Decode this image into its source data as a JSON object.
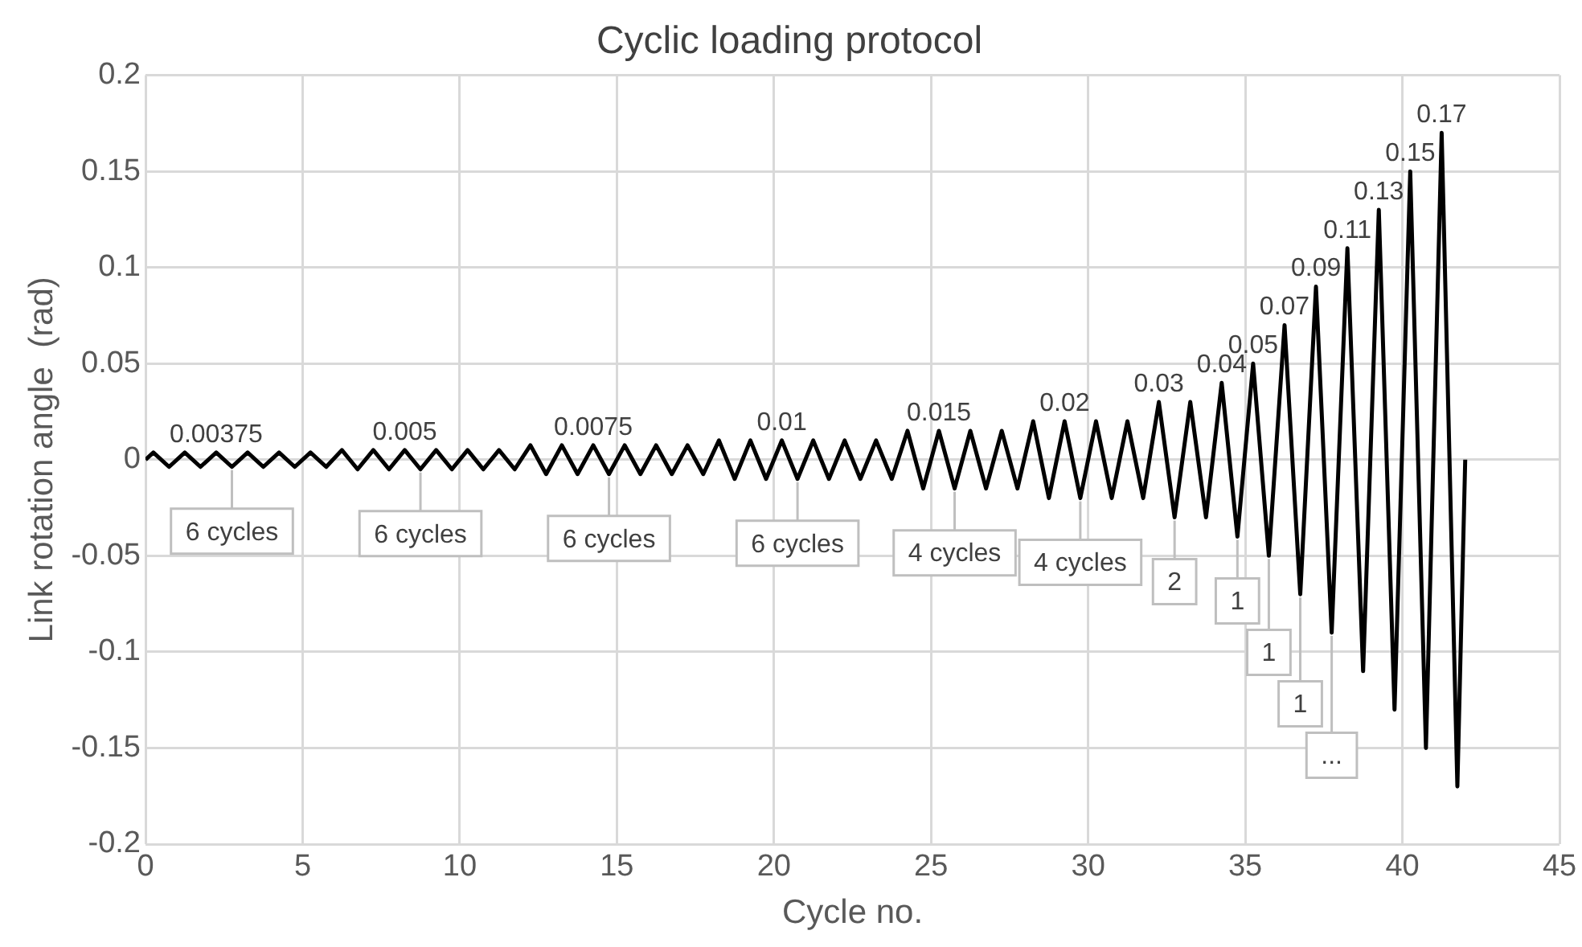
{
  "chart_data": {
    "type": "line",
    "title": "Cyclic loading protocol",
    "xlabel": "Cycle no.",
    "ylabel": "Link rotation angle  (rad)",
    "x": [
      0,
      0.25,
      0.75,
      1.25,
      1.75,
      2.25,
      2.75,
      3.25,
      3.75,
      4.25,
      4.75,
      5.25,
      5.75,
      6.25,
      6.75,
      7.25,
      7.75,
      8.25,
      8.75,
      9.25,
      9.75,
      10.25,
      10.75,
      11.25,
      11.75,
      12.25,
      12.75,
      13.25,
      13.75,
      14.25,
      14.75,
      15.25,
      15.75,
      16.25,
      16.75,
      17.25,
      17.75,
      18.25,
      18.75,
      19.25,
      19.75,
      20.25,
      20.75,
      21.25,
      21.75,
      22.25,
      22.75,
      23.25,
      23.75,
      24.25,
      24.75,
      25.25,
      25.75,
      26.25,
      26.75,
      27.25,
      27.75,
      28.25,
      28.75,
      29.25,
      29.75,
      30.25,
      30.75,
      31.25,
      31.75,
      32.25,
      32.75,
      33.25,
      33.75,
      34.25,
      34.75,
      35.25,
      35.75,
      36.25,
      36.75,
      37.25,
      37.75,
      38.25,
      38.75,
      39.25,
      39.75,
      40.25,
      40.75,
      41.25,
      41.75,
      42
    ],
    "series": [
      {
        "color": "#000000",
        "values": [
          0,
          0.00375,
          -0.00375,
          0.00375,
          -0.00375,
          0.00375,
          -0.00375,
          0.00375,
          -0.00375,
          0.00375,
          -0.00375,
          0.00375,
          -0.00375,
          0.005,
          -0.005,
          0.005,
          -0.005,
          0.005,
          -0.005,
          0.005,
          -0.005,
          0.005,
          -0.005,
          0.005,
          -0.005,
          0.0075,
          -0.0075,
          0.0075,
          -0.0075,
          0.0075,
          -0.0075,
          0.0075,
          -0.0075,
          0.0075,
          -0.0075,
          0.0075,
          -0.0075,
          0.01,
          -0.01,
          0.01,
          -0.01,
          0.01,
          -0.01,
          0.01,
          -0.01,
          0.01,
          -0.01,
          0.01,
          -0.01,
          0.015,
          -0.015,
          0.015,
          -0.015,
          0.015,
          -0.015,
          0.015,
          -0.015,
          0.02,
          -0.02,
          0.02,
          -0.02,
          0.02,
          -0.02,
          0.02,
          -0.02,
          0.03,
          -0.03,
          0.03,
          -0.03,
          0.04,
          -0.04,
          0.05,
          -0.05,
          0.07,
          -0.07,
          0.09,
          -0.09,
          0.11,
          -0.11,
          0.13,
          -0.13,
          0.15,
          -0.15,
          0.17,
          -0.17,
          0
        ]
      }
    ],
    "xlim": [
      0,
      45
    ],
    "xticks": [
      0,
      5,
      10,
      15,
      20,
      25,
      30,
      35,
      40,
      45
    ],
    "ylim": [
      -0.2,
      0.2
    ],
    "yticks": [
      -0.2,
      -0.15,
      -0.1,
      -0.05,
      0,
      0.05,
      0.1,
      0.15,
      0.2
    ],
    "grid": true,
    "legend": false,
    "marker": "none",
    "line_style": "solid",
    "annotations": [
      {
        "text": "0.00375",
        "x": 2.25,
        "y": 0.00375
      },
      {
        "text": "0.005",
        "x": 8.25,
        "y": 0.005
      },
      {
        "text": "0.0075",
        "x": 14.25,
        "y": 0.0075
      },
      {
        "text": "0.01",
        "x": 20.25,
        "y": 0.01
      },
      {
        "text": "0.015",
        "x": 25.25,
        "y": 0.015
      },
      {
        "text": "0.02",
        "x": 29.25,
        "y": 0.02
      },
      {
        "text": "0.03",
        "x": 32.25,
        "y": 0.03
      },
      {
        "text": "0.04",
        "x": 34.25,
        "y": 0.04
      },
      {
        "text": "0.05",
        "x": 35.25,
        "y": 0.05
      },
      {
        "text": "0.07",
        "x": 36.25,
        "y": 0.07
      },
      {
        "text": "0.09",
        "x": 37.25,
        "y": 0.09
      },
      {
        "text": "0.11",
        "x": 38.25,
        "y": 0.11
      },
      {
        "text": "0.13",
        "x": 39.25,
        "y": 0.13
      },
      {
        "text": "0.15",
        "x": 40.25,
        "y": 0.15
      },
      {
        "text": "0.17",
        "x": 41.25,
        "y": 0.17
      },
      {
        "text": "6 cycles",
        "x": 2.75,
        "y": -0.00375
      },
      {
        "text": "6 cycles",
        "x": 8.75,
        "y": -0.005
      },
      {
        "text": "6 cycles",
        "x": 14.75,
        "y": -0.0075
      },
      {
        "text": "6 cycles",
        "x": 20.75,
        "y": -0.01
      },
      {
        "text": "4 cycles",
        "x": 25.75,
        "y": -0.015
      },
      {
        "text": "4 cycles",
        "x": 29.75,
        "y": -0.02
      },
      {
        "text": "2",
        "x": 32.75,
        "y": -0.03
      },
      {
        "text": "1",
        "x": 34.75,
        "y": -0.04
      },
      {
        "text": "1",
        "x": 35.75,
        "y": -0.05
      },
      {
        "text": "1",
        "x": 36.75,
        "y": -0.07
      },
      {
        "text": "...",
        "x": 37.75,
        "y": -0.09
      }
    ]
  }
}
